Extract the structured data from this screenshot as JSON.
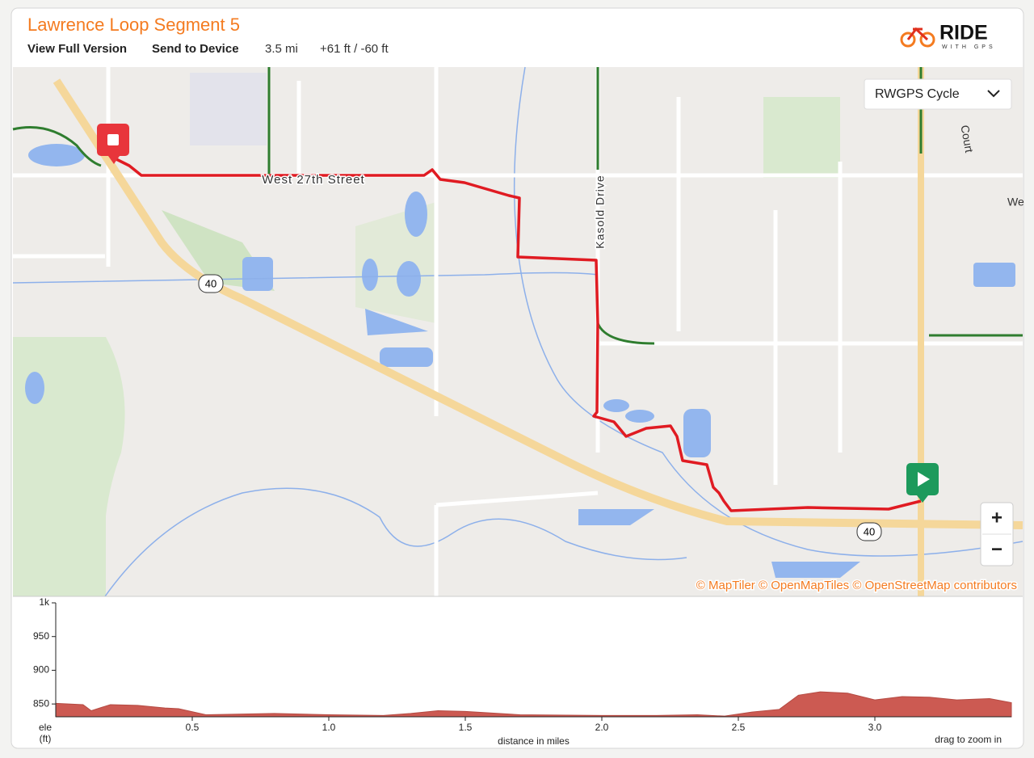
{
  "header": {
    "title": "Lawrence Loop Segment 5",
    "links": [
      "View Full Version",
      "Send to Device"
    ],
    "distance": "3.5 mi",
    "elevation": "+61 ft / -60 ft",
    "logo": {
      "brand": "RIDE",
      "tagline": "WITH GPS"
    }
  },
  "map": {
    "layer": "RWGPS Cycle",
    "zoom_in": "+",
    "zoom_out": "−",
    "attribution": "© MapTiler © OpenMapTiles © OpenStreetMap contributors",
    "labels": {
      "street": "West 27th Street",
      "drive": "Kasold Drive",
      "shield_1": "40",
      "shield_2": "40",
      "court": "Court",
      "partial": "We"
    }
  },
  "chart_data": {
    "type": "area",
    "x": [
      0,
      0.1,
      0.13,
      0.2,
      0.3,
      0.4,
      0.45,
      0.55,
      0.8,
      1.0,
      1.2,
      1.3,
      1.4,
      1.5,
      1.7,
      2.0,
      2.2,
      2.35,
      2.45,
      2.55,
      2.65,
      2.72,
      2.8,
      2.9,
      3.0,
      3.1,
      3.2,
      3.3,
      3.42,
      3.5
    ],
    "values": [
      851,
      849,
      840,
      849,
      848,
      844,
      843,
      834,
      836,
      834,
      833,
      836,
      840,
      839,
      834,
      833,
      833,
      834,
      832,
      838,
      842,
      863,
      868,
      866,
      856,
      861,
      860,
      856,
      858,
      852
    ],
    "color": "#cc5a52",
    "xlim": [
      0,
      3.5
    ],
    "ylim": [
      831,
      1000
    ],
    "xticks": [
      0.5,
      {
        "value": 1,
        "label": "1.0"
      },
      1.5,
      {
        "value": 2,
        "label": "2.0"
      },
      2.5,
      {
        "value": 3,
        "label": "3.0"
      }
    ],
    "yticks": [
      850,
      900,
      950,
      {
        "value": 1000,
        "label": "1k"
      }
    ],
    "ylabel": [
      "ele",
      "(ft)"
    ],
    "xlabel": "distance in miles",
    "note": "drag to zoom in"
  }
}
